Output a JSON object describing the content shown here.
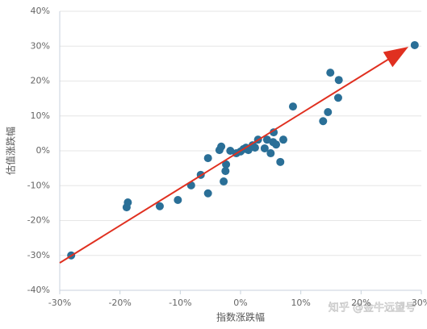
{
  "chart_data": {
    "type": "scatter",
    "x_label": "指数涨跌幅",
    "y_label": "估值涨跌幅",
    "watermark": "知乎 @金牛远望号",
    "color": "#2a6f97",
    "grid": true,
    "x": [
      -28.1,
      -18.9,
      -18.7,
      -13.4,
      -10.4,
      -8.2,
      -6.6,
      -5.4,
      -5.4,
      -3.5,
      -3.2,
      -2.8,
      -2.5,
      -2.4,
      -1.7,
      -0.7,
      0,
      0.5,
      0.9,
      1.3,
      2.0,
      2.4,
      2.9,
      4.0,
      4.4,
      5.0,
      5.5,
      5.4,
      5.9,
      6.6,
      7.1,
      8.7,
      13.7,
      14.5,
      14.9,
      16.3,
      16.2,
      28.9
    ],
    "values": [
      -30,
      -16.2,
      -14.8,
      -15.9,
      -14.1,
      -9.9,
      -6.9,
      -2.1,
      -12.2,
      0.2,
      1.2,
      -8.8,
      -5.8,
      -3.9,
      0,
      -0.7,
      -0.2,
      0.5,
      0.9,
      0.2,
      1.6,
      0.9,
      3.2,
      0.7,
      3.2,
      -0.7,
      5.3,
      2.5,
      1.8,
      -3.2,
      3.2,
      12.7,
      8.5,
      11.1,
      22.4,
      20.3,
      15.2,
      30.3
    ],
    "xlim": [
      -30,
      30
    ],
    "xticks": [
      {
        "value": -30,
        "label": "-30%"
      },
      {
        "value": -20,
        "label": "-20%"
      },
      {
        "value": -10,
        "label": "-10%"
      },
      {
        "value": 0,
        "label": "0%"
      },
      {
        "value": 10,
        "label": "10%"
      },
      {
        "value": 20,
        "label": "20%"
      },
      {
        "value": 30,
        "label": "30%"
      }
    ],
    "ylim": [
      -40,
      40
    ],
    "yticks": [
      {
        "value": -40,
        "label": "-40%"
      },
      {
        "value": -30,
        "label": "-30%"
      },
      {
        "value": -20,
        "label": "-20%"
      },
      {
        "value": -10,
        "label": "-10%"
      },
      {
        "value": 0,
        "label": "0%"
      },
      {
        "value": 10,
        "label": "10%"
      },
      {
        "value": 20,
        "label": "20%"
      },
      {
        "value": 30,
        "label": "30%"
      },
      {
        "value": 40,
        "label": "40%"
      }
    ]
  }
}
